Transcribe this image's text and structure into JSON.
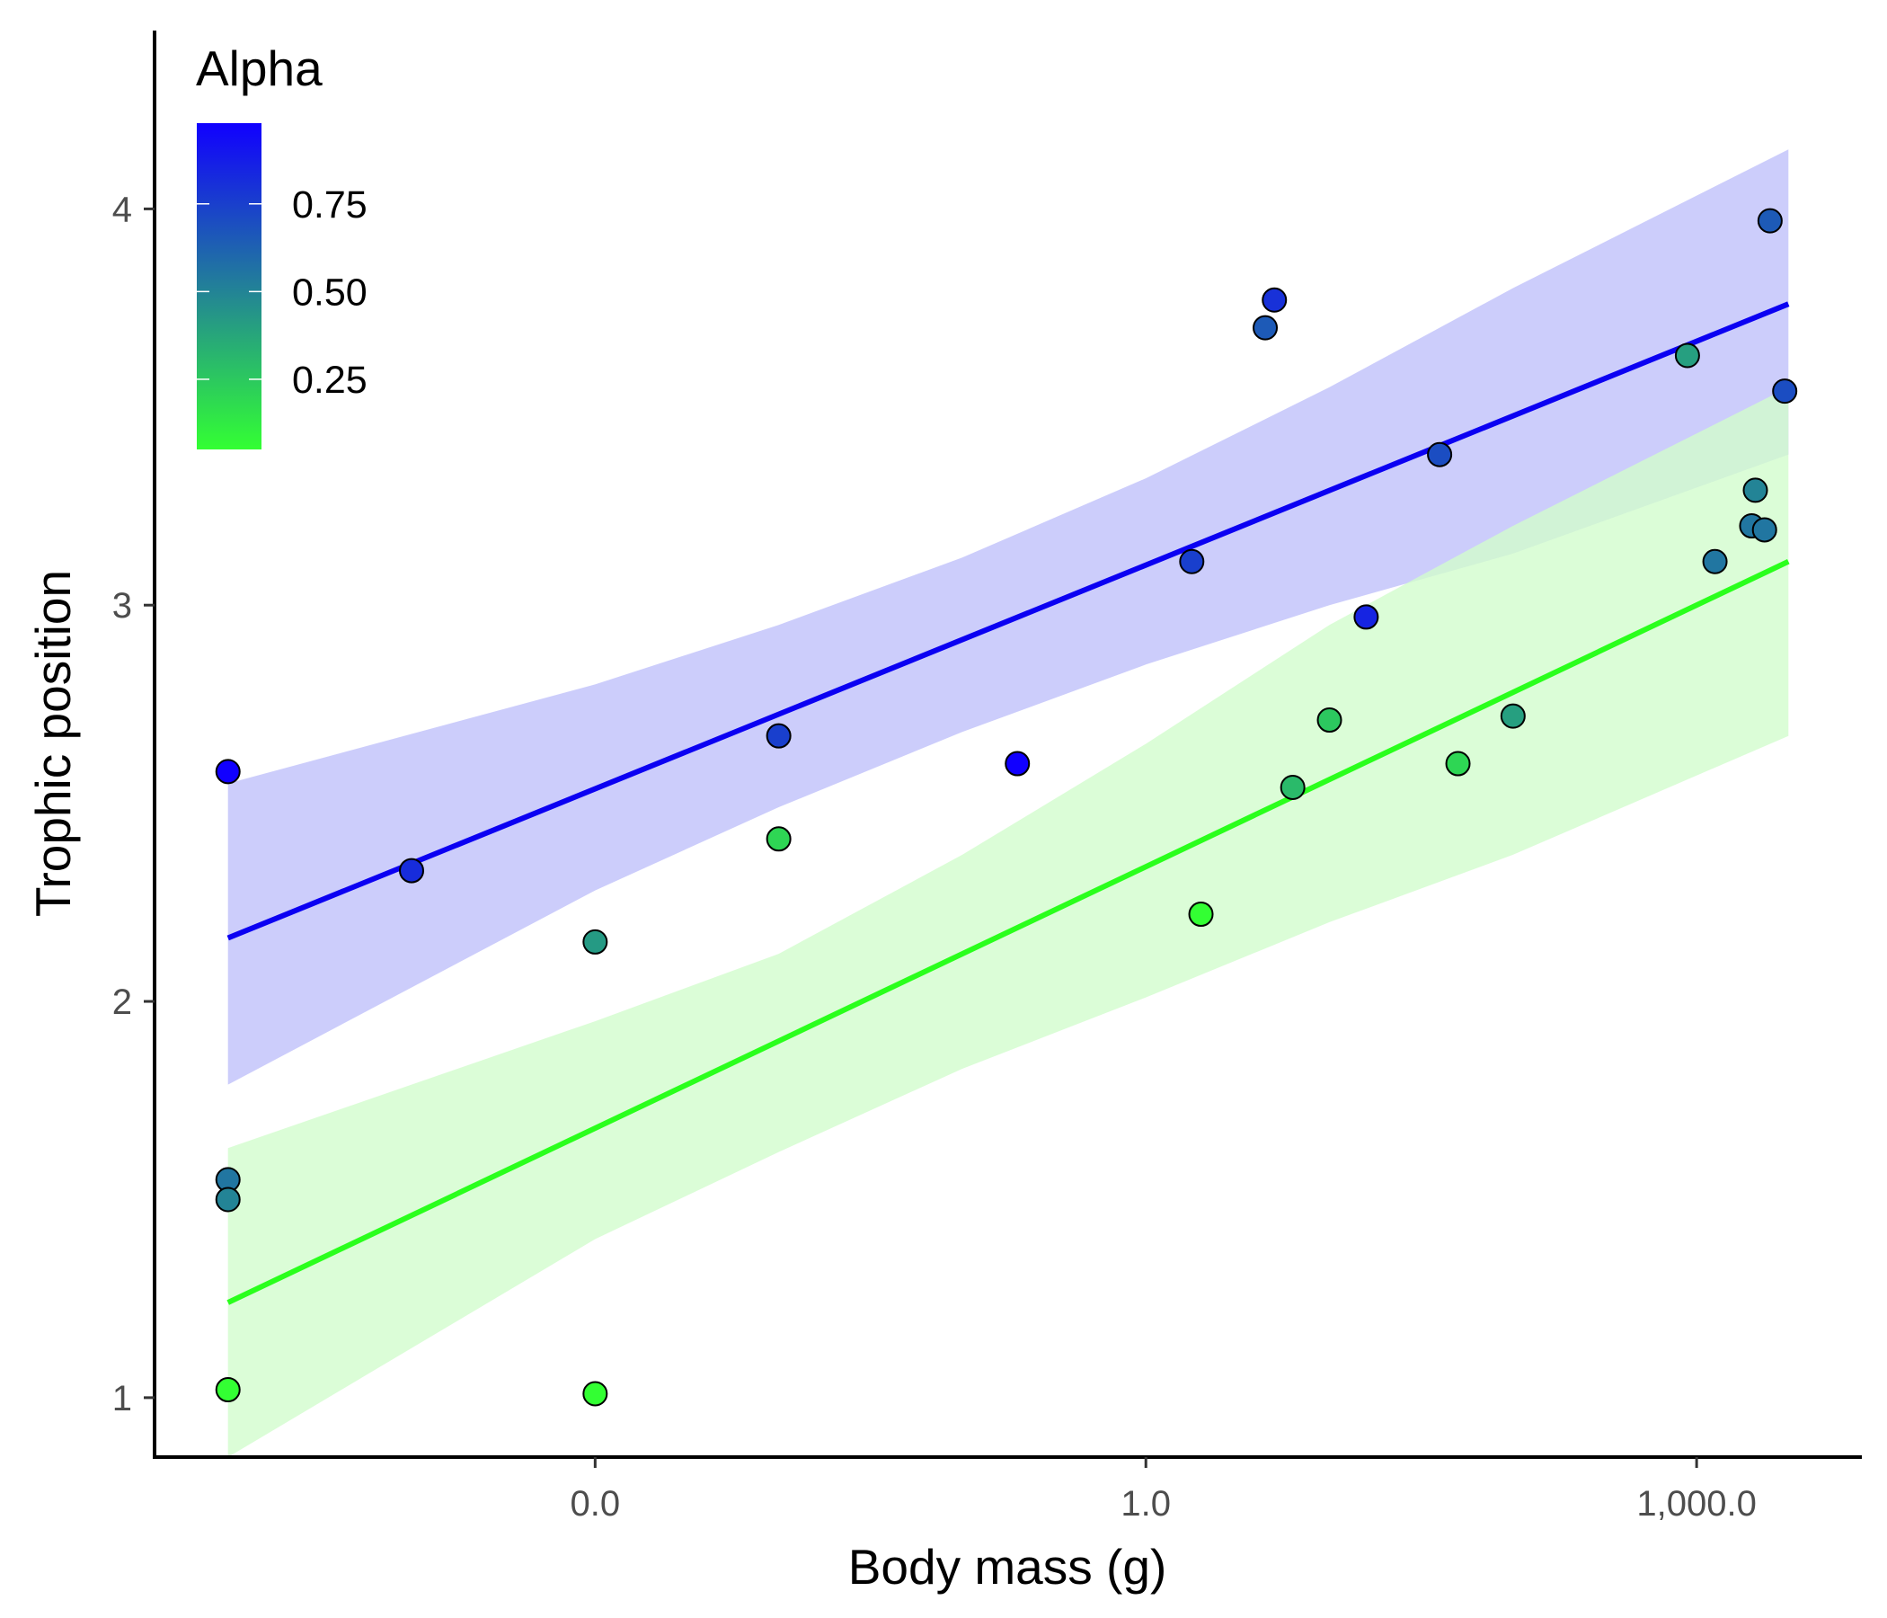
{
  "chart_data": {
    "type": "scatter",
    "xlabel": "Body mass (g)",
    "ylabel": "Trophic position",
    "x_scale": "log10",
    "x_ticks": [
      {
        "value": -3,
        "label": "0.0"
      },
      {
        "value": 0,
        "label": "1.0"
      },
      {
        "value": 3,
        "label": "1,000.0"
      }
    ],
    "y_ticks": [
      {
        "value": 1,
        "label": "1"
      },
      {
        "value": 2,
        "label": "2"
      },
      {
        "value": 3,
        "label": "3"
      },
      {
        "value": 4,
        "label": "4"
      }
    ],
    "xlim_log10": [
      -5.4,
      3.9
    ],
    "ylim": [
      0.85,
      4.45
    ],
    "grid": false,
    "legend": {
      "title": "Alpha",
      "placement": "top-left",
      "type": "colorbar",
      "low_color": "#33ff33",
      "high_color": "#1100ff",
      "range": [
        0.05,
        0.98
      ],
      "ticks": [
        {
          "value": 0.25,
          "label": "0.25"
        },
        {
          "value": 0.5,
          "label": "0.50"
        },
        {
          "value": 0.75,
          "label": "0.75"
        }
      ]
    },
    "fit_lines": [
      {
        "alpha": 0.98,
        "color": "#0b00f2",
        "band_color": "#cccdfb",
        "line": [
          [
            -5.0,
            2.16
          ],
          [
            3.5,
            3.76
          ]
        ],
        "ribbon": [
          {
            "x": -5.0,
            "lo": 1.79,
            "hi": 2.55
          },
          {
            "x": -3.0,
            "lo": 2.28,
            "hi": 2.8
          },
          {
            "x": -2.0,
            "lo": 2.49,
            "hi": 2.95
          },
          {
            "x": -1.0,
            "lo": 2.68,
            "hi": 3.12
          },
          {
            "x": 0.0,
            "lo": 2.85,
            "hi": 3.32
          },
          {
            "x": 1.0,
            "lo": 3.0,
            "hi": 3.55
          },
          {
            "x": 2.0,
            "lo": 3.13,
            "hi": 3.8
          },
          {
            "x": 3.5,
            "lo": 3.38,
            "hi": 4.15
          }
        ]
      },
      {
        "alpha": 0.02,
        "color": "#2aff1c",
        "band_color": "#d2fdcd",
        "line": [
          [
            -5.0,
            1.24
          ],
          [
            3.5,
            3.11
          ]
        ],
        "ribbon": [
          {
            "x": -5.0,
            "lo": 0.85,
            "hi": 1.63
          },
          {
            "x": -3.0,
            "lo": 1.4,
            "hi": 1.95
          },
          {
            "x": -2.0,
            "lo": 1.62,
            "hi": 2.12
          },
          {
            "x": -1.0,
            "lo": 1.83,
            "hi": 2.37
          },
          {
            "x": 0.0,
            "lo": 2.01,
            "hi": 2.65
          },
          {
            "x": 1.0,
            "lo": 2.2,
            "hi": 2.95
          },
          {
            "x": 2.0,
            "lo": 2.37,
            "hi": 3.2
          },
          {
            "x": 3.5,
            "lo": 2.67,
            "hi": 3.55
          }
        ]
      }
    ],
    "points": [
      {
        "x": -5.0,
        "y": 2.58,
        "alpha": 0.98
      },
      {
        "x": -5.0,
        "y": 1.55,
        "alpha": 0.55
      },
      {
        "x": -5.0,
        "y": 1.5,
        "alpha": 0.5
      },
      {
        "x": -5.0,
        "y": 1.02,
        "alpha": 0.05
      },
      {
        "x": -4.0,
        "y": 2.33,
        "alpha": 0.82
      },
      {
        "x": -3.0,
        "y": 2.15,
        "alpha": 0.42
      },
      {
        "x": -3.0,
        "y": 1.01,
        "alpha": 0.05
      },
      {
        "x": -2.0,
        "y": 2.67,
        "alpha": 0.75
      },
      {
        "x": -2.0,
        "y": 2.41,
        "alpha": 0.2
      },
      {
        "x": -0.7,
        "y": 2.6,
        "alpha": 0.98
      },
      {
        "x": 0.25,
        "y": 3.11,
        "alpha": 0.75
      },
      {
        "x": 0.3,
        "y": 2.22,
        "alpha": 0.05
      },
      {
        "x": 0.65,
        "y": 3.7,
        "alpha": 0.65
      },
      {
        "x": 0.7,
        "y": 3.77,
        "alpha": 0.8
      },
      {
        "x": 0.8,
        "y": 2.54,
        "alpha": 0.3
      },
      {
        "x": 1.0,
        "y": 2.71,
        "alpha": 0.25
      },
      {
        "x": 1.2,
        "y": 2.97,
        "alpha": 0.85
      },
      {
        "x": 1.6,
        "y": 3.38,
        "alpha": 0.7
      },
      {
        "x": 1.7,
        "y": 2.6,
        "alpha": 0.2
      },
      {
        "x": 2.0,
        "y": 2.72,
        "alpha": 0.4
      },
      {
        "x": 2.95,
        "y": 3.63,
        "alpha": 0.4
      },
      {
        "x": 3.1,
        "y": 3.11,
        "alpha": 0.55
      },
      {
        "x": 3.3,
        "y": 3.2,
        "alpha": 0.55
      },
      {
        "x": 3.32,
        "y": 3.29,
        "alpha": 0.5
      },
      {
        "x": 3.37,
        "y": 3.19,
        "alpha": 0.55
      },
      {
        "x": 3.4,
        "y": 3.97,
        "alpha": 0.65
      },
      {
        "x": 3.48,
        "y": 3.54,
        "alpha": 0.7
      }
    ]
  }
}
